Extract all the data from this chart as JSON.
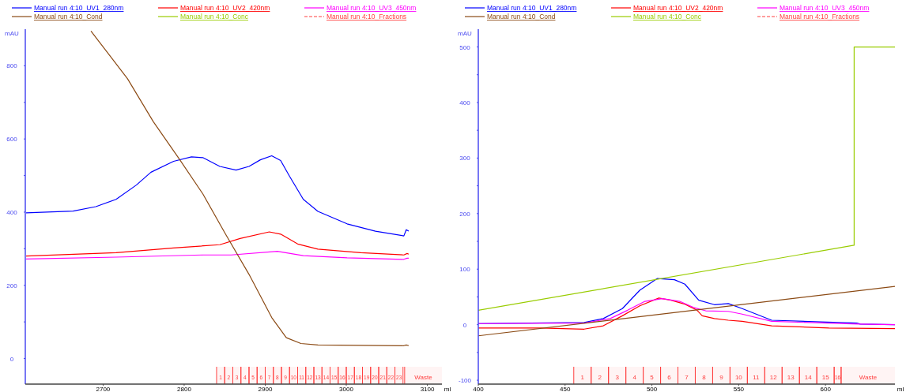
{
  "chart_data": [
    {
      "type": "line",
      "xlabel": "ml",
      "ylabel": "mAU",
      "legend": "top",
      "xlim": [
        2604,
        3118
      ],
      "xticks": [
        2700,
        2800,
        2900,
        3000,
        3100
      ],
      "ylim": [
        -70,
        900
      ],
      "yticks": [
        0,
        {
          "value": 100,
          "label": null
        },
        200,
        {
          "value": 300,
          "label": null
        },
        400,
        {
          "value": 500,
          "label": null
        },
        600,
        {
          "value": 700,
          "label": null
        },
        800
      ],
      "series": [
        {
          "name": "Manual run 4:10_UV1_280nm",
          "color": "#0000ff",
          "x": [
            2605,
            2663,
            2691,
            2716,
            2741,
            2759,
            2787,
            2809,
            2823,
            2844,
            2864,
            2880,
            2894,
            2908,
            2919,
            2930,
            2947,
            2965,
            3001,
            3036,
            3071,
            3074,
            3077
          ],
          "values": [
            398,
            403,
            415,
            435,
            474,
            509,
            539,
            551,
            549,
            525,
            515,
            525,
            543,
            554,
            541,
            498,
            435,
            402,
            368,
            348,
            335,
            352,
            348
          ]
        },
        {
          "name": "Manual run 4:10_UV2_420nm",
          "color": "#ff0000",
          "x": [
            2605,
            2716,
            2787,
            2844,
            2869,
            2905,
            2919,
            2940,
            2965,
            3018,
            3071,
            3075,
            3077
          ],
          "values": [
            280,
            289,
            302,
            311,
            328,
            346,
            340,
            313,
            299,
            289,
            283,
            287,
            285
          ]
        },
        {
          "name": "Manual run 4:10_UV3_450nm",
          "color": "#ff00ff",
          "x": [
            2605,
            2716,
            2823,
            2858,
            2915,
            2947,
            3001,
            3071,
            3075,
            3077
          ],
          "values": [
            272,
            277,
            283,
            283,
            293,
            281,
            275,
            271,
            274,
            274
          ]
        },
        {
          "name": "Manual run 4:10_Cond",
          "color": "#8b4a14",
          "x": [
            2685,
            2730,
            2762,
            2794,
            2823,
            2851,
            2880,
            2908,
            2926,
            2944,
            2965,
            3071,
            3074,
            3077
          ],
          "values": [
            895,
            765,
            647,
            545,
            450,
            340,
            230,
            112,
            57,
            41,
            37,
            35,
            37,
            35
          ]
        },
        {
          "name": "Manual run 4:10_Conc",
          "color": "#99cc00"
        },
        {
          "name": "Manual run 4:10_Fractions",
          "color": "#ff4040",
          "line_style": "dashed"
        }
      ],
      "bands": [
        {
          "axis": "x",
          "from": 2840,
          "to": 2850,
          "label": "1",
          "color": "#ff4040"
        },
        {
          "axis": "x",
          "from": 2850,
          "to": 2860,
          "label": "2",
          "color": "#ff4040"
        },
        {
          "axis": "x",
          "from": 2860,
          "to": 2870,
          "label": "3",
          "color": "#ff4040"
        },
        {
          "axis": "x",
          "from": 2870,
          "to": 2880,
          "label": "4",
          "color": "#ff4040"
        },
        {
          "axis": "x",
          "from": 2880,
          "to": 2890,
          "label": "5",
          "color": "#ff4040"
        },
        {
          "axis": "x",
          "from": 2890,
          "to": 2900,
          "label": "6",
          "color": "#ff4040"
        },
        {
          "axis": "x",
          "from": 2900,
          "to": 2910,
          "label": "7",
          "color": "#ff4040"
        },
        {
          "axis": "x",
          "from": 2910,
          "to": 2920,
          "label": "8",
          "color": "#ff4040"
        },
        {
          "axis": "x",
          "from": 2920,
          "to": 2930,
          "label": "9",
          "color": "#ff4040"
        },
        {
          "axis": "x",
          "from": 2930,
          "to": 2940,
          "label": "10",
          "color": "#ff4040"
        },
        {
          "axis": "x",
          "from": 2940,
          "to": 2950,
          "label": "11",
          "color": "#ff4040"
        },
        {
          "axis": "x",
          "from": 2950,
          "to": 2960,
          "label": "12",
          "color": "#ff4040"
        },
        {
          "axis": "x",
          "from": 2960,
          "to": 2970,
          "label": "13",
          "color": "#ff4040"
        },
        {
          "axis": "x",
          "from": 2970,
          "to": 2980,
          "label": "14",
          "color": "#ff4040"
        },
        {
          "axis": "x",
          "from": 2980,
          "to": 2990,
          "label": "15",
          "color": "#ff4040"
        },
        {
          "axis": "x",
          "from": 2990,
          "to": 3000,
          "label": "16",
          "color": "#ff4040"
        },
        {
          "axis": "x",
          "from": 3000,
          "to": 3010,
          "label": "17",
          "color": "#ff4040"
        },
        {
          "axis": "x",
          "from": 3010,
          "to": 3020,
          "label": "18",
          "color": "#ff4040"
        },
        {
          "axis": "x",
          "from": 3020,
          "to": 3030,
          "label": "19",
          "color": "#ff4040"
        },
        {
          "axis": "x",
          "from": 3030,
          "to": 3040,
          "label": "20",
          "color": "#ff4040"
        },
        {
          "axis": "x",
          "from": 3040,
          "to": 3050,
          "label": "21",
          "color": "#ff4040"
        },
        {
          "axis": "x",
          "from": 3050,
          "to": 3060,
          "label": "22",
          "color": "#ff4040"
        },
        {
          "axis": "x",
          "from": 3060,
          "to": 3070,
          "label": "23",
          "color": "#ff4040"
        },
        {
          "axis": "x",
          "from": 3072,
          "to": 3118,
          "label": "Waste",
          "color": "#ff4040"
        }
      ]
    },
    {
      "type": "line",
      "xlabel": "ml",
      "ylabel": "mAU",
      "legend": "top",
      "xlim": [
        400,
        640
      ],
      "xticks": [
        400,
        450,
        500,
        550,
        600
      ],
      "ylim": [
        -107,
        532
      ],
      "yticks": [
        -100,
        {
          "value": -50,
          "label": null
        },
        0,
        {
          "value": 50,
          "label": null
        },
        100,
        {
          "value": 150,
          "label": null
        },
        200,
        {
          "value": 250,
          "label": null
        },
        300,
        {
          "value": 350,
          "label": null
        },
        400,
        {
          "value": 450,
          "label": null
        },
        500
      ],
      "series": [
        {
          "name": "Manual run 4:10_UV1_280nm",
          "color": "#0000ff",
          "x": [
            400,
            461,
            472,
            483,
            493,
            503,
            513,
            519,
            527,
            536,
            544,
            552,
            569,
            618,
            620,
            640
          ],
          "values": [
            2,
            4,
            11,
            29,
            62,
            83,
            81,
            73,
            44,
            36,
            38,
            29,
            8,
            3,
            1,
            0
          ]
        },
        {
          "name": "Manual run 4:10_UV2_420nm",
          "color": "#ff0000",
          "x": [
            400,
            436,
            461,
            472,
            483,
            493,
            504,
            511,
            519,
            526,
            529,
            536,
            544,
            552,
            569,
            602,
            640
          ],
          "values": [
            -6,
            -6,
            -8,
            -2,
            16,
            34,
            48,
            44,
            37,
            26,
            16,
            11,
            8,
            6,
            -2,
            -6,
            -7
          ]
        },
        {
          "name": "Manual run 4:10_UV3_450nm",
          "color": "#ff00ff",
          "x": [
            400,
            461,
            476,
            486,
            496,
            506,
            516,
            524,
            531,
            544,
            552,
            569,
            619,
            640
          ],
          "values": [
            2,
            3,
            11,
            26,
            42,
            47,
            42,
            31,
            25,
            24,
            19,
            6,
            1,
            0
          ]
        },
        {
          "name": "Manual run 4:10_Cond",
          "color": "#8b4a14",
          "x": [
            400,
            640
          ],
          "values": [
            -20,
            69
          ]
        },
        {
          "name": "Manual run 4:10_Conc",
          "color": "#99cc00",
          "x": [
            400,
            616.5,
            616.5,
            640
          ],
          "values": [
            26,
            143,
            500,
            500
          ]
        },
        {
          "name": "Manual run 4:10_Fractions",
          "color": "#ff4040",
          "line_style": "dashed"
        }
      ],
      "bands": [
        {
          "axis": "x",
          "from": 455,
          "to": 465,
          "label": "1",
          "color": "#ff4040"
        },
        {
          "axis": "x",
          "from": 465,
          "to": 475,
          "label": "2",
          "color": "#ff4040"
        },
        {
          "axis": "x",
          "from": 475,
          "to": 485,
          "label": "3",
          "color": "#ff4040"
        },
        {
          "axis": "x",
          "from": 485,
          "to": 495,
          "label": "4",
          "color": "#ff4040"
        },
        {
          "axis": "x",
          "from": 495,
          "to": 505,
          "label": "5",
          "color": "#ff4040"
        },
        {
          "axis": "x",
          "from": 505,
          "to": 515,
          "label": "6",
          "color": "#ff4040"
        },
        {
          "axis": "x",
          "from": 515,
          "to": 525,
          "label": "7",
          "color": "#ff4040"
        },
        {
          "axis": "x",
          "from": 525,
          "to": 535,
          "label": "8",
          "color": "#ff4040"
        },
        {
          "axis": "x",
          "from": 535,
          "to": 545,
          "label": "9",
          "color": "#ff4040"
        },
        {
          "axis": "x",
          "from": 545,
          "to": 555,
          "label": "10",
          "color": "#ff4040"
        },
        {
          "axis": "x",
          "from": 555,
          "to": 565,
          "label": "11",
          "color": "#ff4040"
        },
        {
          "axis": "x",
          "from": 565,
          "to": 575,
          "label": "12",
          "color": "#ff4040"
        },
        {
          "axis": "x",
          "from": 575,
          "to": 585,
          "label": "13",
          "color": "#ff4040"
        },
        {
          "axis": "x",
          "from": 585,
          "to": 595,
          "label": "14",
          "color": "#ff4040"
        },
        {
          "axis": "x",
          "from": 595,
          "to": 605,
          "label": "15",
          "color": "#ff4040"
        },
        {
          "axis": "x",
          "from": 605,
          "to": 609,
          "label": "16",
          "color": "#ff4040"
        },
        {
          "axis": "x",
          "from": 609,
          "to": 640,
          "label": "Waste",
          "color": "#ff4040"
        }
      ]
    }
  ]
}
